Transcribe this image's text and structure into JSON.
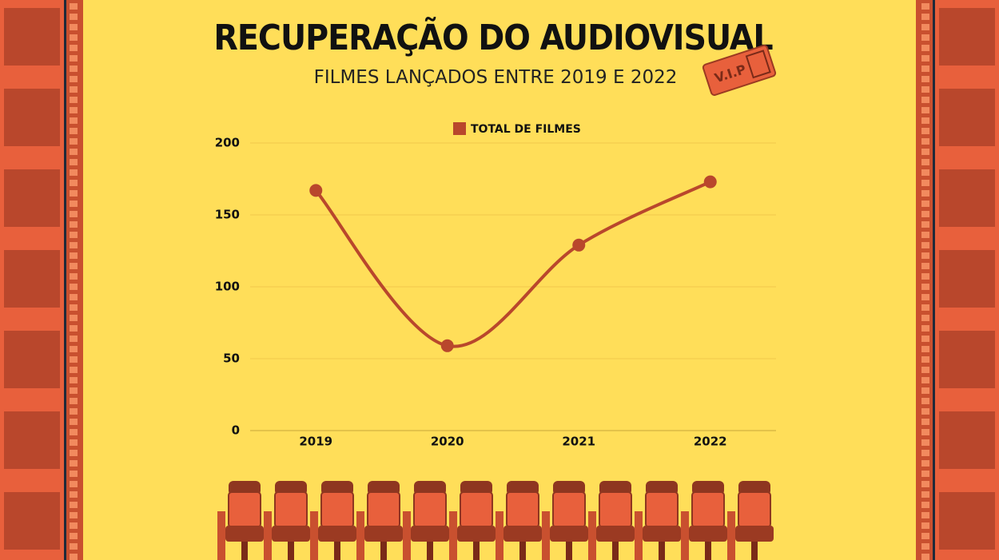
{
  "chart_data": {
    "type": "line",
    "title": "RECUPERAÇÃO DO AUDIOVISUAL",
    "subtitle": "FILMES LANÇADOS ENTRE 2019 E 2022",
    "categories": [
      "2019",
      "2020",
      "2021",
      "2022"
    ],
    "series": [
      {
        "name": "TOTAL DE FILMES",
        "color": "#b9472c",
        "values": [
          167,
          59,
          129,
          173
        ]
      }
    ],
    "ylim": [
      0,
      200
    ],
    "yticks": [
      0,
      50,
      100,
      150,
      200
    ],
    "grid": true,
    "legend": "top"
  }
}
